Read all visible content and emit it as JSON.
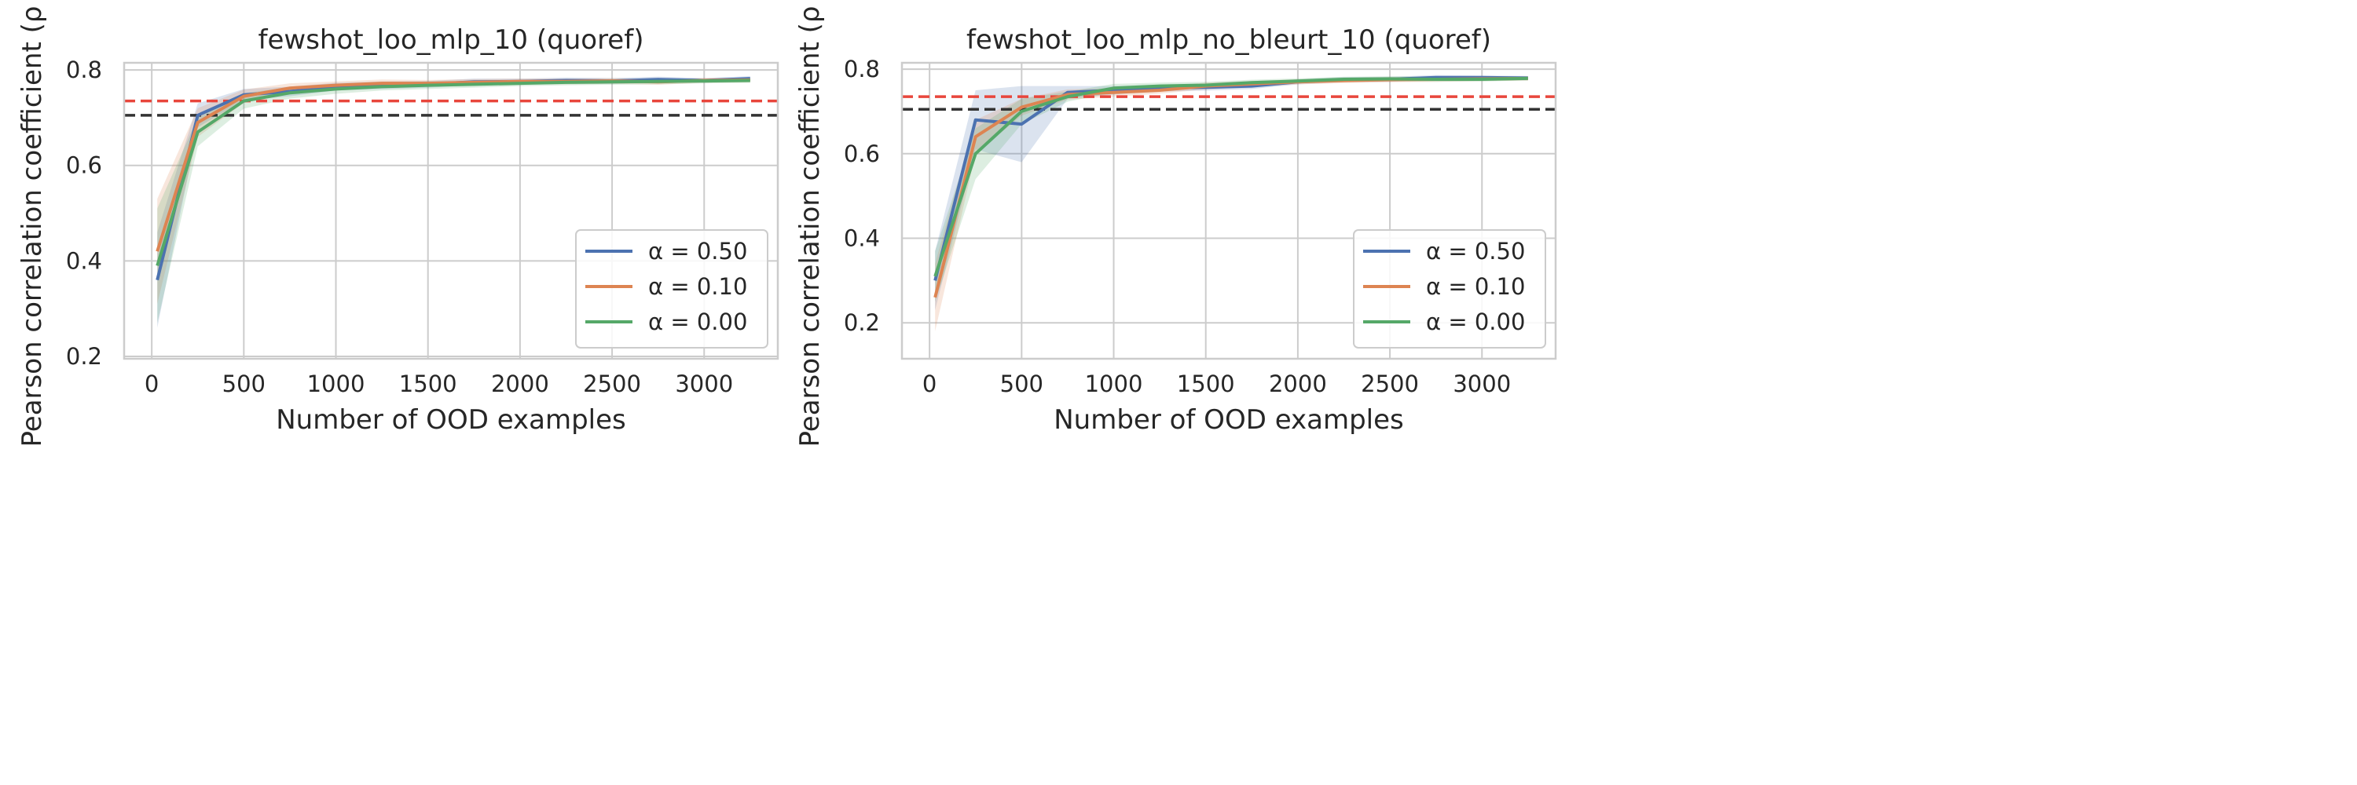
{
  "colors": {
    "series": [
      "#4c72b0",
      "#dd8452",
      "#55a868"
    ],
    "ref_red": "#e8463c",
    "ref_black": "#333333",
    "grid": "#cccccc",
    "frame": "#cccccc"
  },
  "chart_data": [
    {
      "type": "line",
      "title": "fewshot_loo_mlp_10 (quoref)",
      "xlabel": "Number of OOD examples",
      "ylabel": "Pearson correlation coefficient (ρ",
      "xlim": [
        -150,
        3400
      ],
      "ylim": [
        0.195,
        0.815
      ],
      "xticks": [
        0,
        500,
        1000,
        1500,
        2000,
        2500,
        3000
      ],
      "yticks": [
        0.2,
        0.4,
        0.6,
        0.8
      ],
      "xtick_labels": [
        "0",
        "500",
        "1000",
        "1500",
        "2000",
        "2500",
        "3000"
      ],
      "ytick_labels": [
        "0.2",
        "0.4",
        "0.6",
        "0.8"
      ],
      "grid": true,
      "legend_position": "lower-right",
      "x": [
        30,
        250,
        500,
        750,
        1000,
        1250,
        1500,
        1750,
        2000,
        2250,
        2500,
        2750,
        3000,
        3250
      ],
      "series": [
        {
          "name": "α = 0.50",
          "values": [
            0.36,
            0.705,
            0.748,
            0.755,
            0.765,
            0.768,
            0.77,
            0.775,
            0.776,
            0.778,
            0.777,
            0.78,
            0.778,
            0.782
          ],
          "band_width": [
            0.1,
            0.025,
            0.012,
            0.01,
            0.008,
            0.008,
            0.007,
            0.007,
            0.006,
            0.006,
            0.006,
            0.006,
            0.005,
            0.005
          ]
        },
        {
          "name": "α = 0.10",
          "values": [
            0.42,
            0.69,
            0.745,
            0.762,
            0.768,
            0.772,
            0.772,
            0.774,
            0.776,
            0.776,
            0.777,
            0.775,
            0.778,
            0.779
          ],
          "band_width": [
            0.11,
            0.03,
            0.014,
            0.01,
            0.008,
            0.008,
            0.007,
            0.007,
            0.006,
            0.006,
            0.006,
            0.006,
            0.005,
            0.005
          ]
        },
        {
          "name": "α = 0.00",
          "values": [
            0.39,
            0.67,
            0.735,
            0.752,
            0.76,
            0.765,
            0.768,
            0.77,
            0.772,
            0.774,
            0.775,
            0.776,
            0.777,
            0.778
          ],
          "band_width": [
            0.12,
            0.03,
            0.016,
            0.012,
            0.01,
            0.008,
            0.008,
            0.007,
            0.006,
            0.006,
            0.006,
            0.006,
            0.005,
            0.005
          ]
        }
      ],
      "reference_lines": [
        {
          "y": 0.735,
          "color_key": "ref_red"
        },
        {
          "y": 0.705,
          "color_key": "ref_black"
        }
      ]
    },
    {
      "type": "line",
      "title": "fewshot_loo_mlp_no_bleurt_10 (quoref)",
      "xlabel": "Number of OOD examples",
      "ylabel": "Pearson correlation coefficient (ρ",
      "xlim": [
        -150,
        3400
      ],
      "ylim": [
        0.115,
        0.815
      ],
      "xticks": [
        0,
        500,
        1000,
        1500,
        2000,
        2500,
        3000
      ],
      "yticks": [
        0.2,
        0.4,
        0.6,
        0.8
      ],
      "xtick_labels": [
        "0",
        "500",
        "1000",
        "1500",
        "2000",
        "2500",
        "3000"
      ],
      "ytick_labels": [
        "0.2",
        "0.4",
        "0.6",
        "0.8"
      ],
      "grid": true,
      "legend_position": "lower-right",
      "x": [
        30,
        250,
        500,
        750,
        1000,
        1250,
        1500,
        1750,
        2000,
        2250,
        2500,
        2750,
        3000,
        3250
      ],
      "series": [
        {
          "name": "α = 0.50",
          "values": [
            0.3,
            0.68,
            0.67,
            0.745,
            0.75,
            0.755,
            0.757,
            0.76,
            0.77,
            0.775,
            0.776,
            0.78,
            0.78,
            0.779
          ],
          "band_width": [
            0.07,
            0.07,
            0.09,
            0.015,
            0.01,
            0.008,
            0.008,
            0.007,
            0.006,
            0.006,
            0.006,
            0.006,
            0.005,
            0.005
          ]
        },
        {
          "name": "α = 0.10",
          "values": [
            0.26,
            0.64,
            0.71,
            0.74,
            0.745,
            0.75,
            0.76,
            0.765,
            0.77,
            0.773,
            0.775,
            0.776,
            0.777,
            0.778
          ],
          "band_width": [
            0.08,
            0.04,
            0.02,
            0.012,
            0.01,
            0.008,
            0.008,
            0.007,
            0.006,
            0.006,
            0.006,
            0.006,
            0.005,
            0.005
          ]
        },
        {
          "name": "α = 0.00",
          "values": [
            0.31,
            0.6,
            0.7,
            0.735,
            0.755,
            0.76,
            0.762,
            0.768,
            0.772,
            0.776,
            0.777,
            0.776,
            0.776,
            0.778
          ],
          "band_width": [
            0.06,
            0.06,
            0.03,
            0.012,
            0.01,
            0.008,
            0.008,
            0.007,
            0.006,
            0.006,
            0.006,
            0.006,
            0.005,
            0.005
          ]
        }
      ],
      "reference_lines": [
        {
          "y": 0.735,
          "color_key": "ref_red"
        },
        {
          "y": 0.705,
          "color_key": "ref_black"
        }
      ]
    }
  ]
}
